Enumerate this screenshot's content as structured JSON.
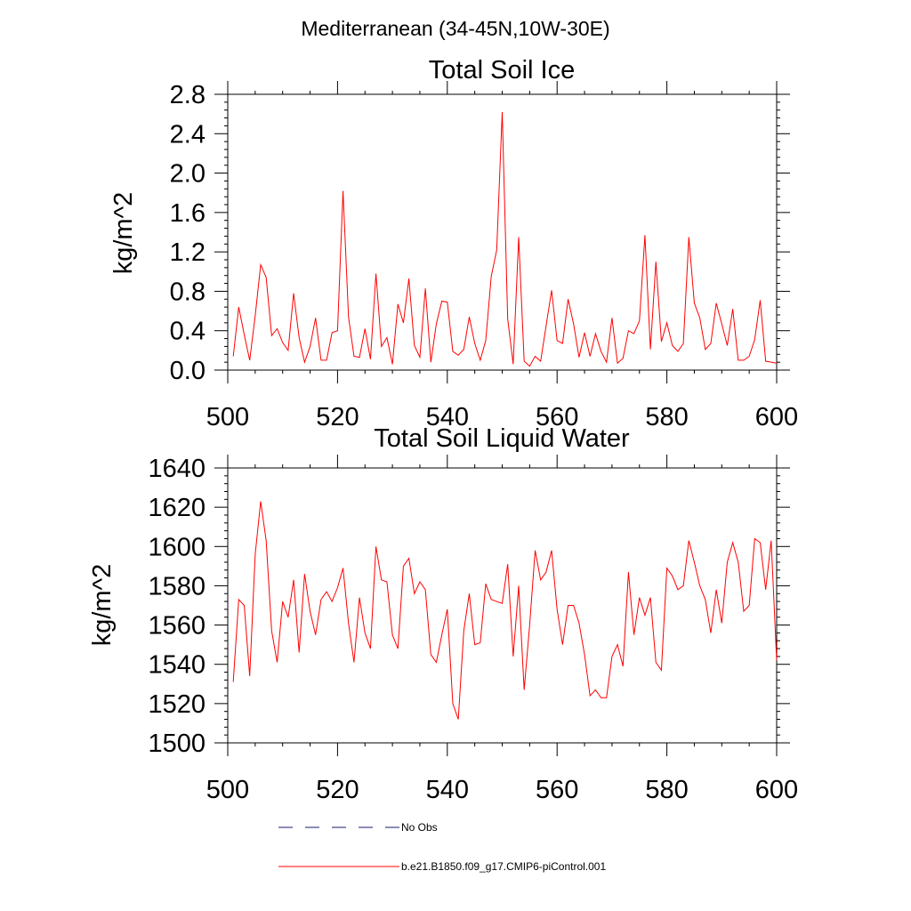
{
  "figure": {
    "suptitle": "Mediterranean (34-45N,10W-30E)"
  },
  "legend": {
    "entries": [
      {
        "label": "No Obs",
        "style": "dashed",
        "color": "#1a1a6e"
      },
      {
        "label": "b.e21.B1850.f09_g17.CMIP6-piControl.001",
        "style": "solid",
        "color": "#ff0000"
      }
    ]
  },
  "chart_data": [
    {
      "type": "line",
      "title": "Total Soil Ice",
      "xlabel": "",
      "ylabel": "kg/m^2",
      "xlim": [
        500,
        600
      ],
      "ylim": [
        0.0,
        2.8
      ],
      "xticks": [
        "500",
        "520",
        "540",
        "560",
        "580",
        "600"
      ],
      "yticks": [
        "0.0",
        "0.4",
        "0.8",
        "1.2",
        "1.6",
        "2.0",
        "2.4",
        "2.8"
      ],
      "grid": false,
      "series": [
        {
          "color": "#ff0000",
          "x": [
            501,
            502,
            503,
            504,
            505,
            506,
            507,
            508,
            509,
            510,
            511,
            512,
            513,
            514,
            515,
            516,
            517,
            518,
            519,
            520,
            521,
            522,
            523,
            524,
            525,
            526,
            527,
            528,
            529,
            530,
            531,
            532,
            533,
            534,
            535,
            536,
            537,
            538,
            539,
            540,
            541,
            542,
            543,
            544,
            545,
            546,
            547,
            548,
            549,
            550,
            551,
            552,
            553,
            554,
            555,
            556,
            557,
            558,
            559,
            560,
            561,
            562,
            563,
            564,
            565,
            566,
            567,
            568,
            569,
            570,
            571,
            572,
            573,
            574,
            575,
            576,
            577,
            578,
            579,
            580,
            581,
            582,
            583,
            584,
            585,
            586,
            587,
            588,
            589,
            590,
            591,
            592,
            593,
            594,
            595,
            596,
            597,
            598,
            599,
            600
          ],
          "values": [
            0.14,
            0.64,
            0.36,
            0.1,
            0.55,
            1.07,
            0.94,
            0.35,
            0.42,
            0.28,
            0.2,
            0.78,
            0.33,
            0.08,
            0.24,
            0.53,
            0.1,
            0.1,
            0.38,
            0.4,
            1.82,
            0.54,
            0.14,
            0.13,
            0.42,
            0.11,
            0.98,
            0.24,
            0.33,
            0.06,
            0.67,
            0.48,
            0.93,
            0.25,
            0.13,
            0.83,
            0.08,
            0.47,
            0.7,
            0.69,
            0.19,
            0.15,
            0.21,
            0.54,
            0.27,
            0.1,
            0.3,
            0.95,
            1.22,
            2.62,
            0.52,
            0.06,
            1.35,
            0.09,
            0.04,
            0.14,
            0.09,
            0.45,
            0.81,
            0.3,
            0.27,
            0.72,
            0.47,
            0.13,
            0.38,
            0.14,
            0.37,
            0.19,
            0.08,
            0.53,
            0.07,
            0.12,
            0.4,
            0.37,
            0.5,
            1.37,
            0.21,
            1.1,
            0.29,
            0.48,
            0.25,
            0.19,
            0.27,
            1.35,
            0.68,
            0.53,
            0.21,
            0.27,
            0.68,
            0.47,
            0.25,
            0.62,
            0.1,
            0.1,
            0.14,
            0.31,
            0.71,
            0.09,
            0.08,
            0.07
          ]
        }
      ]
    },
    {
      "type": "line",
      "title": "Total Soil Liquid Water",
      "xlabel": "",
      "ylabel": "kg/m^2",
      "xlim": [
        500,
        600
      ],
      "ylim": [
        1500,
        1640
      ],
      "xticks": [
        "500",
        "520",
        "540",
        "560",
        "580",
        "600"
      ],
      "yticks": [
        "1500",
        "1520",
        "1540",
        "1560",
        "1580",
        "1600",
        "1620",
        "1640"
      ],
      "grid": false,
      "series": [
        {
          "color": "#ff0000",
          "x": [
            501,
            502,
            503,
            504,
            505,
            506,
            507,
            508,
            509,
            510,
            511,
            512,
            513,
            514,
            515,
            516,
            517,
            518,
            519,
            520,
            521,
            522,
            523,
            524,
            525,
            526,
            527,
            528,
            529,
            530,
            531,
            532,
            533,
            534,
            535,
            536,
            537,
            538,
            539,
            540,
            541,
            542,
            543,
            544,
            545,
            546,
            547,
            548,
            549,
            550,
            551,
            552,
            553,
            554,
            555,
            556,
            557,
            558,
            559,
            560,
            561,
            562,
            563,
            564,
            565,
            566,
            567,
            568,
            569,
            570,
            571,
            572,
            573,
            574,
            575,
            576,
            577,
            578,
            579,
            580,
            581,
            582,
            583,
            584,
            585,
            586,
            587,
            588,
            589,
            590,
            591,
            592,
            593,
            594,
            595,
            596,
            597,
            598,
            599,
            600
          ],
          "values": [
            1531,
            1573,
            1570,
            1534,
            1596,
            1623,
            1603,
            1557,
            1541,
            1572,
            1564,
            1583,
            1546,
            1586,
            1567,
            1555,
            1573,
            1577,
            1572,
            1579,
            1589,
            1561,
            1541,
            1574,
            1556,
            1548,
            1600,
            1583,
            1582,
            1555,
            1548,
            1590,
            1594,
            1576,
            1582,
            1578,
            1545,
            1541,
            1555,
            1568,
            1520,
            1512,
            1557,
            1576,
            1550,
            1551,
            1581,
            1573,
            1572,
            1571,
            1591,
            1544,
            1580,
            1527,
            1560,
            1598,
            1583,
            1587,
            1598,
            1568,
            1550,
            1570,
            1570,
            1561,
            1545,
            1524,
            1527,
            1523,
            1523,
            1544,
            1550,
            1539,
            1587,
            1555,
            1574,
            1565,
            1574,
            1541,
            1537,
            1589,
            1585,
            1578,
            1580,
            1603,
            1592,
            1580,
            1573,
            1556,
            1578,
            1561,
            1592,
            1602,
            1592,
            1567,
            1570,
            1604,
            1602,
            1578,
            1603,
            1542
          ]
        }
      ]
    }
  ]
}
